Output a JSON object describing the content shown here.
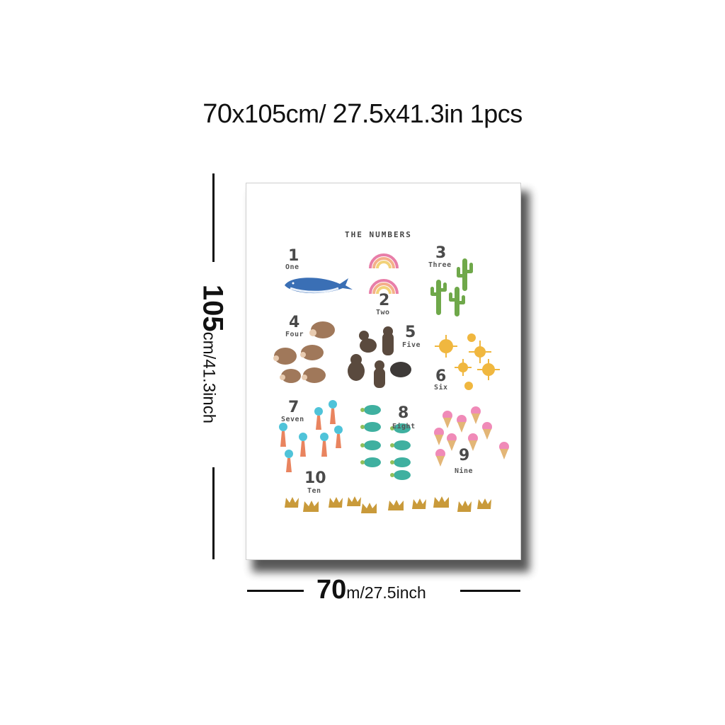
{
  "heading": {
    "part1": "70",
    "part2": "x105cm/",
    "part3": "27.5",
    "part4": "x41.3in",
    "part5": "1pcs"
  },
  "dimensions": {
    "height_big": "105",
    "height_small": "cm/41.3inch",
    "width_big": "70",
    "width_small": "m/27.5inch"
  },
  "poster": {
    "title": "THE NUMBERS",
    "items": [
      {
        "num": "1",
        "word": "One",
        "picture": "whale-icon"
      },
      {
        "num": "2",
        "word": "Two",
        "picture": "rainbow-icon"
      },
      {
        "num": "3",
        "word": "Three",
        "picture": "cactus-icon"
      },
      {
        "num": "4",
        "word": "Four",
        "picture": "hedgehog-icon"
      },
      {
        "num": "5",
        "word": "Five",
        "picture": "bear-icon"
      },
      {
        "num": "6",
        "word": "Six",
        "picture": "sun-icon"
      },
      {
        "num": "7",
        "word": "Seven",
        "picture": "mermaid-icon"
      },
      {
        "num": "8",
        "word": "Eight",
        "picture": "turtle-icon"
      },
      {
        "num": "9",
        "word": "Nine",
        "picture": "ice-cream-icon"
      },
      {
        "num": "10",
        "word": "Ten",
        "picture": "crown-icon"
      }
    ]
  },
  "colors": {
    "whale": "#3a6fb5",
    "rainbow_pink": "#e87ea8",
    "rainbow_peach": "#f4b08a",
    "rainbow_yellow": "#f2d27a",
    "cactus": "#6fa84a",
    "hedgehog": "#a0785a",
    "bear": "#5a4a3e",
    "sun": "#f0b73f",
    "mermaid_tail": "#e9845f",
    "mermaid_hair": "#4fc3d9",
    "turtle": "#3fb0a0",
    "ice_cream": "#f08ab8",
    "cone": "#e3b677",
    "crown": "#c99a3a"
  }
}
